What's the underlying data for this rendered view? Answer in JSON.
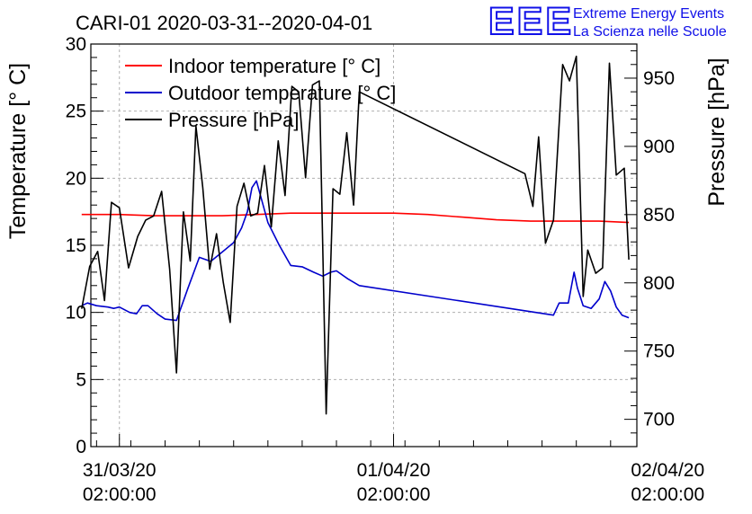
{
  "chart_data": {
    "type": "line",
    "title": "CARI-01 2020-03-31--2020-04-01",
    "ylabel_left": "Temperature [° C]",
    "ylabel_right": "Pressure [hPa]",
    "ylim_left": [
      0,
      30
    ],
    "ylim_right": [
      680,
      975
    ],
    "left_ticks": [
      0,
      5,
      10,
      15,
      20,
      25,
      30
    ],
    "right_ticks": [
      700,
      750,
      800,
      850,
      900,
      950
    ],
    "xlim_hours": [
      -2.5,
      45.3
    ],
    "x_ticks": [
      {
        "hour": 0,
        "date": "31/03/20",
        "time": "02:00:00"
      },
      {
        "hour": 24,
        "date": "01/04/20",
        "time": "02:00:00"
      },
      {
        "hour": 48,
        "date": "02/04/20",
        "time": "02:00:00"
      }
    ],
    "grid": true,
    "legend_position": "top-left",
    "series": [
      {
        "name": "Indoor temperature [° C]",
        "color": "#ff0000",
        "axis": "left",
        "x": [
          -3.3,
          0,
          3,
          6,
          9,
          12,
          15,
          18,
          21,
          24,
          27,
          30,
          33,
          36,
          39,
          42,
          44.6
        ],
        "y": [
          17.3,
          17.3,
          17.2,
          17.2,
          17.2,
          17.3,
          17.4,
          17.4,
          17.4,
          17.4,
          17.3,
          17.1,
          16.9,
          16.8,
          16.8,
          16.8,
          16.7
        ]
      },
      {
        "name": "Outdoor temperature [° C]",
        "color": "#0000cc",
        "axis": "left",
        "x": [
          -3.3,
          -2.8,
          -2.0,
          -1.0,
          -0.5,
          0.0,
          0.9,
          1.5,
          2.0,
          2.5,
          3.3,
          4.0,
          5.0,
          6.0,
          7.0,
          8.0,
          9.0,
          10.0,
          10.7,
          11.2,
          11.6,
          12.0,
          13.0,
          14.0,
          15.0,
          16.0,
          17.0,
          17.8,
          18.5,
          19.0,
          20.0,
          21.0,
          38.0,
          38.5,
          39.3,
          39.8,
          40.1,
          40.6,
          41.3,
          42.0,
          42.5,
          43.0,
          43.5,
          44.0,
          44.6
        ],
        "y": [
          10.5,
          10.7,
          10.5,
          10.4,
          10.3,
          10.4,
          10.0,
          9.9,
          10.5,
          10.5,
          9.9,
          9.5,
          9.4,
          11.8,
          14.1,
          13.8,
          14.5,
          15.2,
          16.3,
          17.5,
          19.3,
          19.8,
          16.7,
          15.0,
          13.5,
          13.4,
          13.0,
          12.7,
          13.0,
          13.1,
          12.5,
          12.0,
          9.8,
          10.7,
          10.7,
          13.0,
          11.8,
          10.5,
          10.3,
          11.0,
          12.3,
          11.6,
          10.4,
          9.8,
          9.6
        ]
      },
      {
        "name": "Pressure [hPa]",
        "color": "#000000",
        "axis": "right",
        "x": [
          -3.3,
          -2.6,
          -1.9,
          -1.3,
          -0.7,
          0.0,
          0.8,
          1.6,
          2.3,
          3.0,
          3.7,
          4.4,
          5.0,
          5.6,
          6.2,
          6.7,
          7.3,
          7.9,
          8.5,
          9.1,
          9.7,
          10.3,
          10.9,
          11.5,
          12.1,
          12.7,
          13.3,
          13.9,
          14.5,
          15.1,
          15.7,
          16.3,
          16.9,
          17.5,
          18.1,
          18.7,
          19.3,
          19.9,
          20.5,
          21.0,
          35.5,
          36.2,
          36.7,
          37.3,
          38.0,
          38.8,
          39.4,
          40.0,
          40.6,
          41.0,
          41.7,
          42.3,
          42.9,
          43.5,
          44.2,
          44.6
        ],
        "y": [
          781,
          812,
          823,
          787,
          859,
          855,
          811,
          834,
          846,
          849,
          867,
          810,
          734,
          852,
          816,
          915,
          870,
          810,
          836,
          800,
          771,
          856,
          873,
          849,
          851,
          886,
          841,
          904,
          864,
          944,
          940,
          877,
          945,
          948,
          704,
          869,
          865,
          910,
          857,
          940,
          880,
          856,
          907,
          829,
          846,
          960,
          948,
          966,
          790,
          824,
          807,
          811,
          961,
          879,
          884,
          817
        ]
      }
    ]
  },
  "logo": {
    "brand": "EEE",
    "line1": "Extreme Energy Events",
    "line2": "La Scienza nelle Scuole",
    "color": "#1010e8"
  }
}
